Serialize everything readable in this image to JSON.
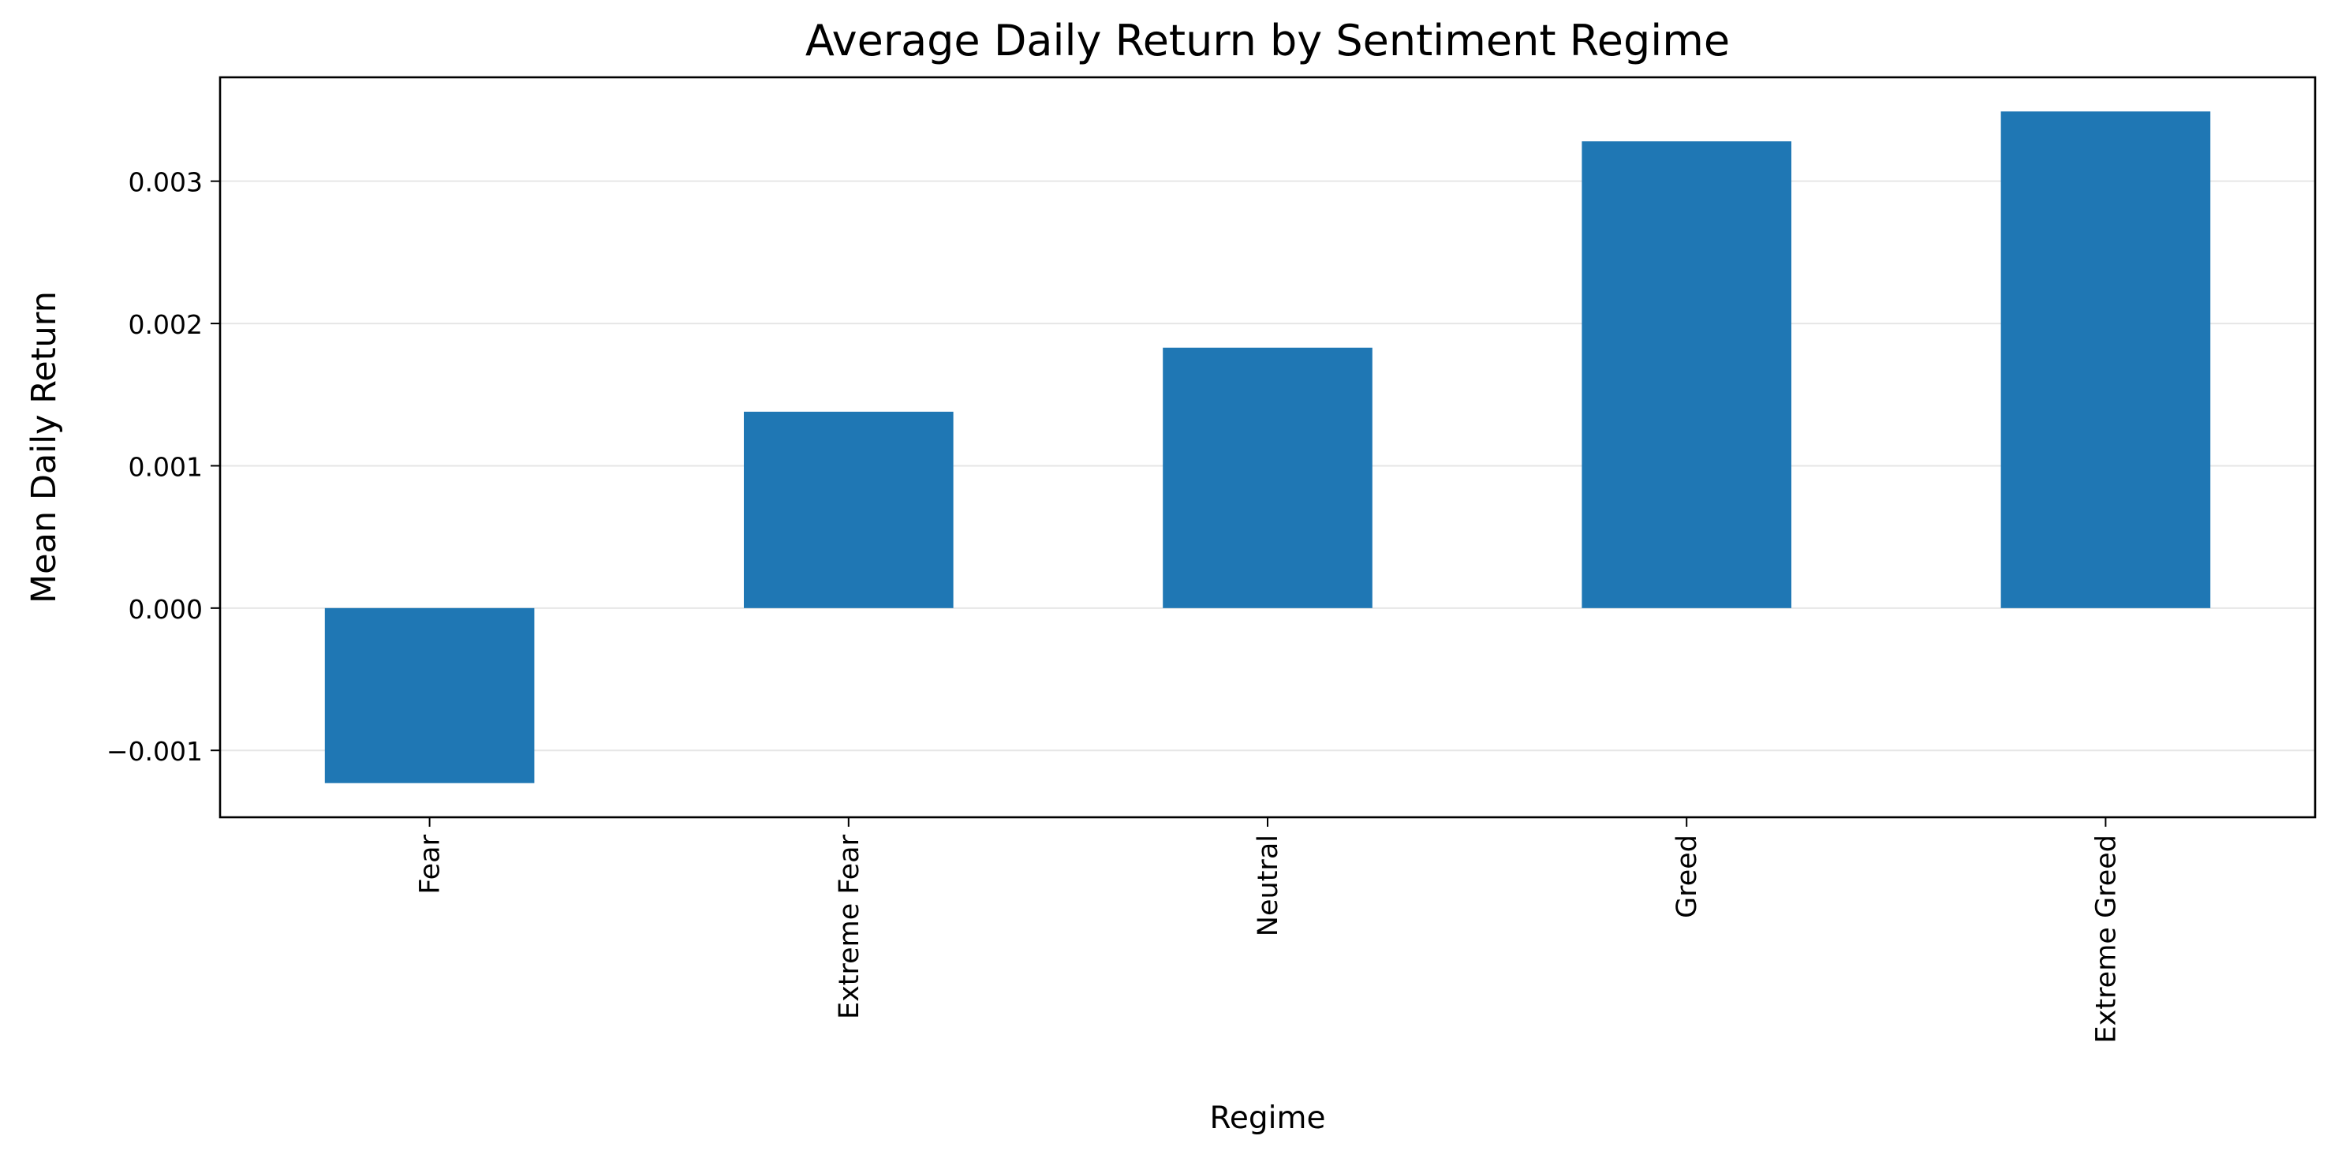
{
  "chart_data": {
    "type": "bar",
    "title": "Average Daily Return by Sentiment Regime",
    "xlabel": "Regime",
    "ylabel": "Mean Daily Return",
    "categories": [
      "Fear",
      "Extreme Fear",
      "Neutral",
      "Greed",
      "Extreme Greed"
    ],
    "values": [
      -0.00123,
      0.00138,
      0.00183,
      0.00328,
      0.00349
    ],
    "ylim": [
      -0.00147,
      0.00373
    ],
    "yticks": [
      -0.001,
      0.0,
      0.001,
      0.002,
      0.003
    ],
    "ytick_labels": [
      "−0.001",
      "0.000",
      "0.001",
      "0.002",
      "0.003"
    ],
    "grid": "horizontal",
    "legend": "none",
    "bar_color": "#1f77b4",
    "grid_color": "#e6e6e6"
  }
}
